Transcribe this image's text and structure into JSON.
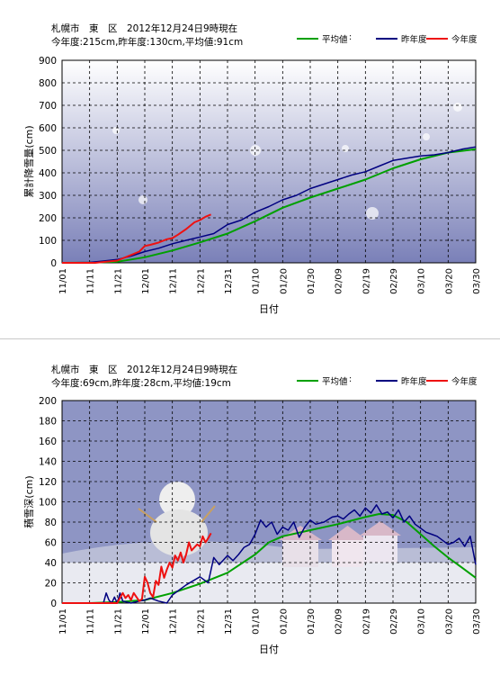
{
  "colors": {
    "avg": "#00a000",
    "last": "#000080",
    "this": "#ee1111",
    "bg_top": "#ffffff",
    "bg_bottom": "#7a80b8"
  },
  "legend": {
    "avg": "平均値",
    "last": "昨年度",
    "this": "今年度"
  },
  "chart_data": [
    {
      "type": "line",
      "title": "札幌市　東　区　2012年12月24日9時現在",
      "subtitle": "今年度:215cm,昨年度:130cm,平均値:91cm",
      "xlabel": "日付",
      "ylabel": "累計降雪量(cm)",
      "ylim": [
        0,
        900
      ],
      "yticks": [
        0,
        100,
        200,
        300,
        400,
        500,
        600,
        700,
        800,
        900
      ],
      "xlim": [
        0,
        150
      ],
      "xticks": [
        "11/01",
        "11/11",
        "11/21",
        "12/01",
        "12/11",
        "12/21",
        "12/31",
        "01/10",
        "01/20",
        "01/30",
        "02/09",
        "02/19",
        "02/29",
        "03/10",
        "03/20",
        "03/30"
      ],
      "grid": true,
      "series": [
        {
          "name": "平均値",
          "x": [
            0,
            10,
            20,
            30,
            40,
            50,
            60,
            70,
            80,
            90,
            100,
            110,
            120,
            130,
            140,
            150
          ],
          "y": [
            0,
            1,
            5,
            25,
            55,
            91,
            130,
            185,
            245,
            290,
            330,
            370,
            420,
            460,
            490,
            505
          ]
        },
        {
          "name": "昨年度",
          "x": [
            0,
            10,
            15,
            20,
            25,
            30,
            35,
            40,
            45,
            50,
            55,
            60,
            65,
            70,
            75,
            80,
            85,
            90,
            95,
            100,
            105,
            110,
            115,
            120,
            125,
            130,
            135,
            140,
            145,
            150
          ],
          "y": [
            0,
            2,
            8,
            15,
            30,
            50,
            65,
            85,
            100,
            115,
            130,
            170,
            190,
            225,
            250,
            280,
            300,
            330,
            350,
            370,
            390,
            405,
            430,
            455,
            465,
            475,
            480,
            490,
            505,
            515
          ]
        },
        {
          "name": "今年度",
          "x": [
            0,
            12,
            20,
            22,
            25,
            28,
            30,
            32,
            35,
            38,
            40,
            42,
            45,
            48,
            50,
            52,
            54
          ],
          "y": [
            0,
            0,
            10,
            20,
            35,
            50,
            75,
            80,
            90,
            105,
            110,
            125,
            150,
            180,
            190,
            205,
            215
          ]
        }
      ]
    },
    {
      "type": "line",
      "title": "札幌市　東　区　2012年12月24日9時現在",
      "subtitle": "今年度:69cm,昨年度:28cm,平均値:19cm",
      "xlabel": "日付",
      "ylabel": "積雪深(cm)",
      "ylim": [
        0,
        200
      ],
      "yticks": [
        0,
        20,
        40,
        60,
        80,
        100,
        120,
        140,
        160,
        180,
        200
      ],
      "xlim": [
        0,
        150
      ],
      "xticks": [
        "11/01",
        "11/11",
        "11/21",
        "12/01",
        "12/11",
        "12/21",
        "12/31",
        "01/10",
        "01/20",
        "01/30",
        "02/09",
        "02/19",
        "02/29",
        "03/10",
        "03/20",
        "03/30"
      ],
      "grid": true,
      "series": [
        {
          "name": "平均値",
          "x": [
            0,
            10,
            20,
            30,
            40,
            50,
            60,
            70,
            75,
            80,
            90,
            100,
            110,
            115,
            120,
            125,
            130,
            135,
            140,
            145,
            150
          ],
          "y": [
            0,
            0,
            1,
            3,
            10,
            19,
            30,
            48,
            60,
            66,
            72,
            78,
            85,
            88,
            87,
            80,
            68,
            56,
            45,
            35,
            25
          ]
        },
        {
          "name": "昨年度",
          "x": [
            0,
            15,
            16,
            17,
            18,
            19,
            20,
            21,
            22,
            25,
            28,
            30,
            32,
            35,
            38,
            40,
            45,
            50,
            53,
            55,
            57,
            60,
            62,
            64,
            66,
            68,
            70,
            72,
            74,
            76,
            78,
            80,
            82,
            84,
            86,
            88,
            90,
            92,
            95,
            98,
            100,
            102,
            104,
            106,
            108,
            110,
            112,
            114,
            116,
            118,
            120,
            122,
            124,
            126,
            128,
            130,
            132,
            134,
            136,
            138,
            140,
            142,
            144,
            146,
            148,
            150
          ],
          "y": [
            0,
            0,
            10,
            3,
            0,
            6,
            0,
            10,
            2,
            0,
            2,
            3,
            5,
            2,
            0,
            8,
            18,
            26,
            20,
            45,
            38,
            47,
            42,
            48,
            55,
            58,
            68,
            82,
            75,
            80,
            68,
            75,
            72,
            80,
            65,
            75,
            82,
            78,
            80,
            85,
            86,
            83,
            88,
            92,
            86,
            94,
            89,
            97,
            88,
            90,
            84,
            92,
            80,
            86,
            78,
            74,
            70,
            68,
            66,
            62,
            58,
            60,
            64,
            56,
            66,
            38
          ]
        },
        {
          "name": "今年度",
          "x": [
            0,
            20,
            22,
            23,
            24,
            25,
            26,
            27,
            28,
            29,
            30,
            31,
            32,
            33,
            34,
            35,
            36,
            37,
            38,
            39,
            40,
            41,
            42,
            43,
            44,
            45,
            46,
            47,
            48,
            49,
            50,
            51,
            52,
            53,
            54
          ],
          "y": [
            0,
            0,
            10,
            5,
            8,
            3,
            10,
            6,
            2,
            4,
            26,
            20,
            10,
            6,
            22,
            18,
            36,
            25,
            33,
            40,
            35,
            47,
            42,
            50,
            40,
            48,
            60,
            52,
            55,
            58,
            56,
            66,
            60,
            64,
            69
          ]
        }
      ]
    }
  ]
}
